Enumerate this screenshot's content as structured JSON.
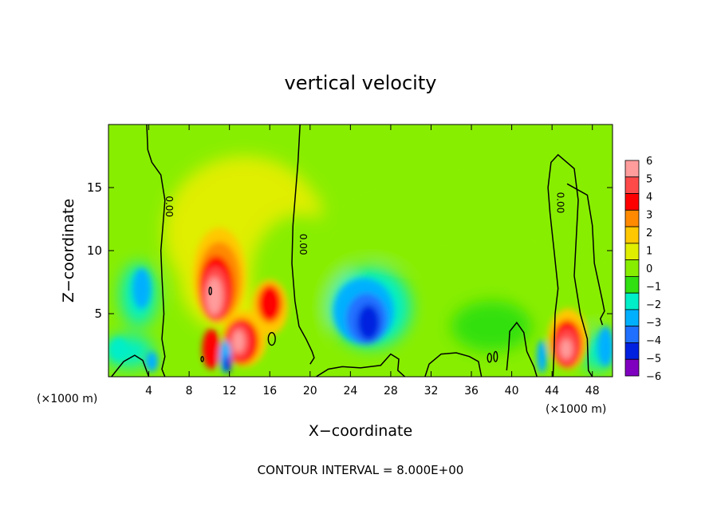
{
  "chart_data": {
    "type": "heatmap",
    "title": "vertical velocity",
    "xlabel": "X−coordinate",
    "ylabel": "Z−coordinate",
    "x_unit_left": "(×1000 m)",
    "x_unit_right": "(×1000 m)",
    "footer": "CONTOUR INTERVAL = 8.000E+00",
    "xlim": [
      0,
      50
    ],
    "ylim": [
      0,
      20
    ],
    "x_ticks": [
      4,
      8,
      12,
      16,
      20,
      24,
      28,
      32,
      36,
      40,
      44,
      48
    ],
    "x_tick_labels": [
      "4",
      "8",
      "12",
      "16",
      "20",
      "24",
      "28",
      "32",
      "36",
      "40",
      "44",
      "48"
    ],
    "y_ticks": [
      5,
      10,
      15
    ],
    "y_tick_labels": [
      "5",
      "10",
      "15"
    ],
    "contour_label": "0.00",
    "colorbar": {
      "levels": [
        6,
        5,
        4,
        3,
        2,
        1,
        0,
        -1,
        -2,
        -3,
        -4,
        -5,
        -6
      ],
      "labels": [
        "6",
        "5",
        "4",
        "3",
        "2",
        "1",
        "0",
        "−1",
        "−2",
        "−3",
        "−4",
        "−5",
        "−6"
      ],
      "colors": [
        "#ff9c9c",
        "#ff4a4a",
        "#ff0000",
        "#ff8a00",
        "#ffc800",
        "#e0ee00",
        "#88ee00",
        "#30e010",
        "#00eec8",
        "#00b0ff",
        "#2070ff",
        "#0020e0",
        "#8000c0"
      ]
    },
    "features": [
      {
        "name": "updraft core",
        "x": 10.5,
        "z": 6.5,
        "value": 6
      },
      {
        "name": "updraft",
        "x": 13,
        "z": 2.8,
        "value": 5.5
      },
      {
        "name": "updraft",
        "x": 16,
        "z": 6,
        "value": 4
      },
      {
        "name": "downdraft",
        "x": 25.5,
        "z": 5,
        "value": -5
      },
      {
        "name": "updraft",
        "x": 45.5,
        "z": 2.5,
        "value": 5.5
      },
      {
        "name": "downdraft",
        "x": 43,
        "z": 1.5,
        "value": -4
      },
      {
        "name": "downdraft",
        "x": 3,
        "z": 7,
        "value": -2
      }
    ]
  }
}
